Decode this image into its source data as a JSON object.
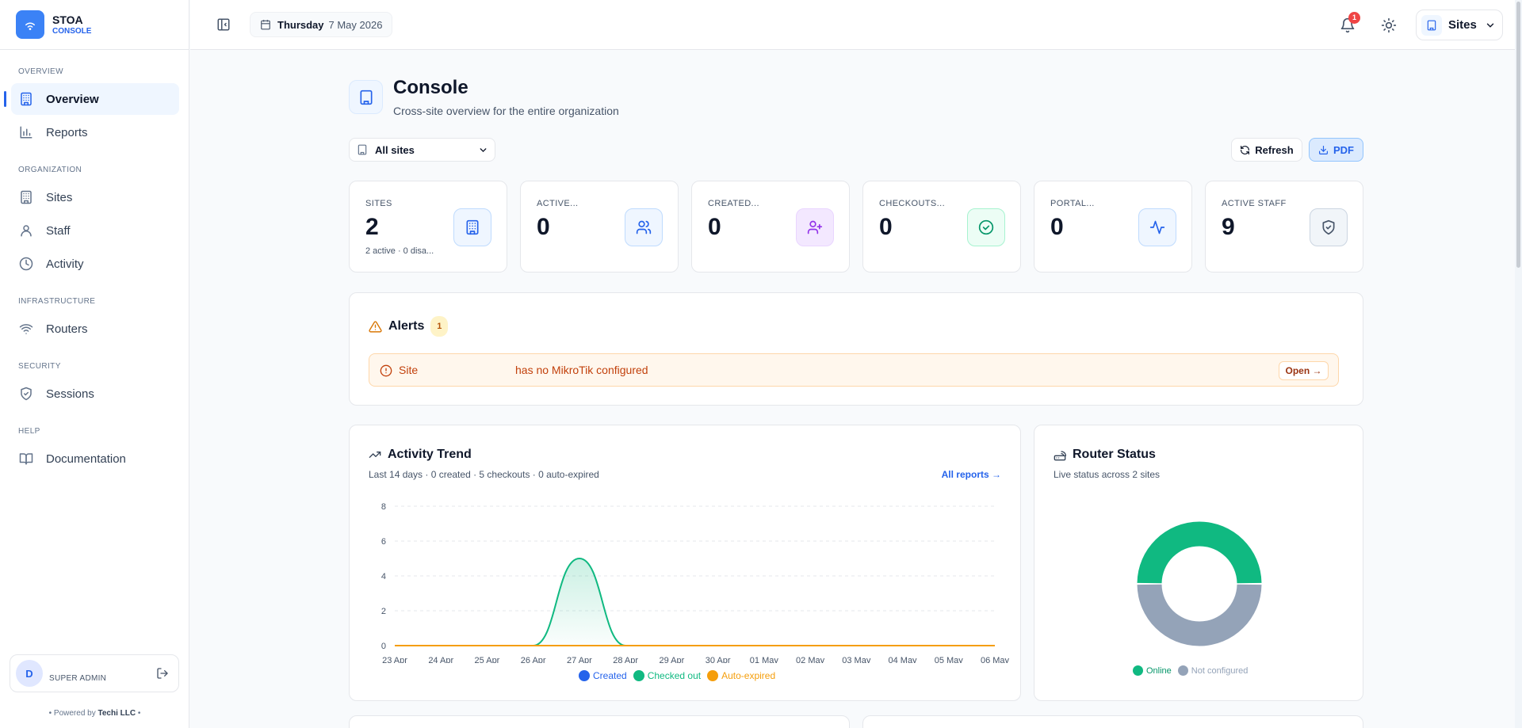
{
  "brand": {
    "name": "STOA",
    "sub": "CONSOLE"
  },
  "nav": {
    "sections": [
      {
        "title": "OVERVIEW",
        "items": [
          {
            "label": "Overview",
            "icon": "building-icon"
          },
          {
            "label": "Reports",
            "icon": "bar-chart-icon"
          }
        ]
      },
      {
        "title": "ORGANIZATION",
        "items": [
          {
            "label": "Sites",
            "icon": "building-icon"
          },
          {
            "label": "Staff",
            "icon": "user-icon"
          },
          {
            "label": "Activity",
            "icon": "clock-icon"
          }
        ]
      },
      {
        "title": "INFRASTRUCTURE",
        "items": [
          {
            "label": "Routers",
            "icon": "wifi-icon"
          }
        ]
      },
      {
        "title": "SECURITY",
        "items": [
          {
            "label": "Sessions",
            "icon": "shield-icon"
          }
        ]
      },
      {
        "title": "HELP",
        "items": [
          {
            "label": "Documentation",
            "icon": "book-icon"
          }
        ]
      }
    ]
  },
  "user": {
    "initial": "D",
    "role": "SUPER ADMIN"
  },
  "footer": {
    "powered_prefix": "Powered by",
    "powered_by": "Techi LLC"
  },
  "topbar": {
    "day": "Thursday",
    "date": "7 May 2026",
    "notification_count": "1",
    "sites_label": "Sites"
  },
  "page": {
    "title": "Console",
    "subtitle": "Cross-site overview for the entire organization"
  },
  "filters": {
    "site_select": "All sites"
  },
  "actions": {
    "refresh": "Refresh",
    "pdf": "PDF"
  },
  "stats": [
    {
      "label": "SITES",
      "value": "2",
      "sub": "2 active · 0 disa...",
      "icon": "building-icon",
      "color": "#2563eb"
    },
    {
      "label": "ACTIVE...",
      "value": "0",
      "sub": "",
      "icon": "users-icon",
      "color": "#2563eb"
    },
    {
      "label": "CREATED...",
      "value": "0",
      "sub": "",
      "icon": "user-plus-icon",
      "color": "#9333ea"
    },
    {
      "label": "CHECKOUTS...",
      "value": "0",
      "sub": "",
      "icon": "check-circle-icon",
      "color": "#059669"
    },
    {
      "label": "PORTAL...",
      "value": "0",
      "sub": "",
      "icon": "activity-icon",
      "color": "#2563eb"
    },
    {
      "label": "ACTIVE STAFF",
      "value": "9",
      "sub": "",
      "icon": "shield-icon",
      "color": "#475569"
    }
  ],
  "alerts": {
    "title": "Alerts",
    "count": "1",
    "items": [
      {
        "label": "Site",
        "message": "has no MikroTik configured",
        "action": "Open →"
      }
    ]
  },
  "activity": {
    "title": "Activity Trend",
    "subtitle": "Last 14 days · 0 created · 5 checkouts · 0 auto-expired",
    "link": "All reports →"
  },
  "router_status": {
    "title": "Router Status",
    "subtitle": "Live status across 2 sites"
  },
  "chart_data": [
    {
      "type": "area",
      "x": [
        "23 Apr",
        "24 Apr",
        "25 Apr",
        "26 Apr",
        "27 Apr",
        "28 Apr",
        "29 Apr",
        "30 Apr",
        "01 May",
        "02 May",
        "03 May",
        "04 May",
        "05 May",
        "06 May"
      ],
      "ylim": [
        0,
        8
      ],
      "yticks": [
        0,
        2,
        4,
        6,
        8
      ],
      "grid": true,
      "legend": "bottom",
      "series": [
        {
          "name": "Created",
          "color": "#2563eb",
          "values": [
            0,
            0,
            0,
            0,
            0,
            0,
            0,
            0,
            0,
            0,
            0,
            0,
            0,
            0
          ]
        },
        {
          "name": "Checked out",
          "color": "#10b981",
          "values": [
            0,
            0,
            0,
            0,
            5,
            0,
            0,
            0,
            0,
            0,
            0,
            0,
            0,
            0
          ]
        },
        {
          "name": "Auto-expired",
          "color": "#f59e0b",
          "values": [
            0,
            0,
            0,
            0,
            0,
            0,
            0,
            0,
            0,
            0,
            0,
            0,
            0,
            0
          ]
        }
      ]
    },
    {
      "type": "pie",
      "legend": "bottom",
      "slices": [
        {
          "name": "Online",
          "value": 1,
          "color": "#10b981"
        },
        {
          "name": "Not configured",
          "value": 1,
          "color": "#94a3b8"
        }
      ]
    }
  ]
}
